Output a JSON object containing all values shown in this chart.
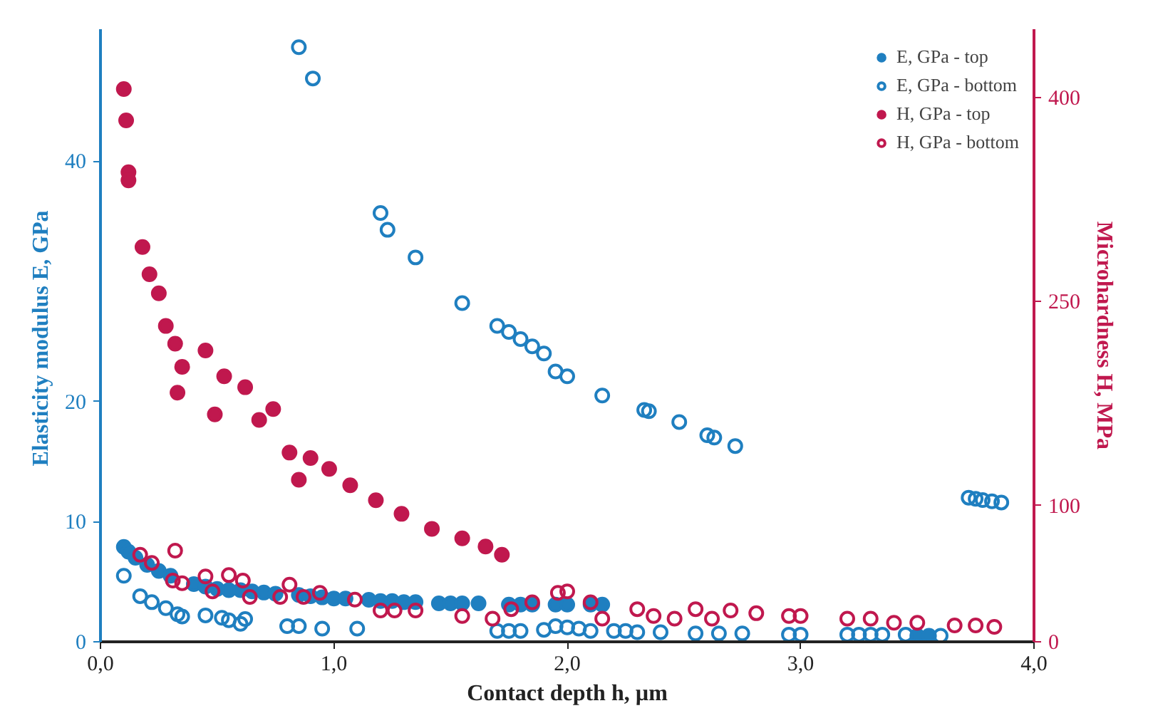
{
  "chart_data": {
    "type": "scatter",
    "xlabel": "Contact depth h, µm",
    "ylabel": "Elasticity modulus  E, GPa",
    "y2label": "Microhardness H, MPa",
    "xlim": [
      0,
      4
    ],
    "xticks": [
      {
        "value": 0,
        "label": "0,0"
      },
      {
        "value": 1,
        "label": "1,0"
      },
      {
        "value": 2,
        "label": "2,0"
      },
      {
        "value": 3,
        "label": "3,0"
      },
      {
        "value": 4,
        "label": "4,0"
      }
    ],
    "ylim": [
      0,
      51
    ],
    "yticks": [
      0,
      10,
      20,
      40
    ],
    "y2lim": [
      0,
      450
    ],
    "y2ticks": [
      0,
      100,
      250,
      400
    ],
    "grid": false,
    "legend": "top right",
    "series": [
      {
        "name": "E, GPa - top",
        "color": "#1f7fc0",
        "marker": "circle",
        "x": [
          0.1,
          0.12,
          0.15,
          0.2,
          0.25,
          0.3,
          0.4,
          0.45,
          0.5,
          0.55,
          0.6,
          0.65,
          0.7,
          0.75,
          0.85,
          0.9,
          0.95,
          1.0,
          1.05,
          1.15,
          1.2,
          1.25,
          1.3,
          1.35,
          1.45,
          1.5,
          1.55,
          1.62,
          1.75,
          1.8,
          1.85,
          1.95,
          2.0,
          2.1,
          2.15,
          3.5,
          3.55
        ],
        "values": [
          7.9,
          7.5,
          7.0,
          6.4,
          5.9,
          5.5,
          4.8,
          4.6,
          4.4,
          4.3,
          4.3,
          4.2,
          4.1,
          4.0,
          3.9,
          3.8,
          3.7,
          3.6,
          3.6,
          3.5,
          3.4,
          3.4,
          3.3,
          3.3,
          3.2,
          3.2,
          3.2,
          3.2,
          3.1,
          3.1,
          3.1,
          3.1,
          3.1,
          3.1,
          3.1,
          0.5,
          0.5
        ]
      },
      {
        "name": "E, GPa - bottom",
        "color": "#1f7fc0",
        "marker": "circle_open",
        "x": [
          0.1,
          0.17,
          0.22,
          0.28,
          0.33,
          0.35,
          0.45,
          0.52,
          0.55,
          0.6,
          0.62,
          0.8,
          0.85,
          0.95,
          1.1,
          1.7,
          1.75,
          1.8,
          1.9,
          1.95,
          2.0,
          2.05,
          2.1,
          2.2,
          2.25,
          2.3,
          2.4,
          2.55,
          2.65,
          2.75,
          2.95,
          3.0,
          3.2,
          3.25,
          3.3,
          3.35,
          3.45,
          3.6,
          0.85,
          0.91,
          1.2,
          1.23,
          1.35,
          1.55,
          1.7,
          1.75,
          1.8,
          1.85,
          1.9,
          1.95,
          2.0,
          2.15,
          2.33,
          2.35,
          2.48,
          2.6,
          2.63,
          2.72,
          3.72,
          3.75,
          3.78,
          3.82,
          3.86
        ],
        "values": [
          5.5,
          3.8,
          3.3,
          2.8,
          2.3,
          2.1,
          2.2,
          2.0,
          1.8,
          1.5,
          1.9,
          1.3,
          1.3,
          1.1,
          1.1,
          0.9,
          0.9,
          0.9,
          1.0,
          1.3,
          1.2,
          1.1,
          0.9,
          0.9,
          0.9,
          0.8,
          0.8,
          0.7,
          0.7,
          0.7,
          0.6,
          0.6,
          0.6,
          0.6,
          0.6,
          0.6,
          0.6,
          0.5,
          49.5,
          46.9,
          35.7,
          34.3,
          32.0,
          28.2,
          26.3,
          25.8,
          25.2,
          24.6,
          24.0,
          22.5,
          22.1,
          20.5,
          19.3,
          19.2,
          18.3,
          17.2,
          17.0,
          16.3,
          12.0,
          11.9,
          11.8,
          11.7,
          11.6
        ]
      },
      {
        "name": "H, GPa - top",
        "color": "#c0184e",
        "marker": "circle",
        "axis": "y2",
        "x": [
          0.1,
          0.11,
          0.12,
          0.12,
          0.18,
          0.21,
          0.25,
          0.28,
          0.32,
          0.33,
          0.35,
          0.45,
          0.49,
          0.53,
          0.62,
          0.68,
          0.74,
          0.81,
          0.85,
          0.9,
          0.98,
          1.07,
          1.18,
          1.29,
          1.42,
          1.55,
          1.65,
          1.72
        ],
        "values": [
          406,
          383,
          345,
          339,
          290,
          270,
          256,
          232,
          219,
          183,
          202,
          214,
          167,
          195,
          187,
          163,
          171,
          139,
          119,
          135,
          127,
          115,
          104,
          94,
          83,
          76,
          70,
          64
        ]
      },
      {
        "name": "H, GPa - bottom",
        "color": "#c0184e",
        "marker": "circle_open",
        "axis": "y2",
        "x": [
          0.17,
          0.22,
          0.32,
          0.31,
          0.35,
          0.45,
          0.48,
          0.55,
          0.61,
          0.64,
          0.77,
          0.81,
          0.87,
          0.94,
          1.09,
          1.2,
          1.26,
          1.35,
          1.55,
          1.68,
          1.76,
          1.85,
          1.96,
          2.0,
          2.1,
          2.15,
          2.3,
          2.37,
          2.46,
          2.55,
          2.62,
          2.7,
          2.81,
          2.95,
          3.0,
          3.2,
          3.3,
          3.4,
          3.5,
          3.66,
          3.75,
          3.83
        ],
        "values": [
          64,
          58,
          67,
          45,
          43,
          48,
          37,
          49,
          45,
          33,
          33,
          42,
          33,
          36,
          31,
          23,
          23,
          23,
          19,
          17,
          24,
          29,
          36,
          37,
          29,
          17,
          24,
          19,
          17,
          24,
          17,
          23,
          21,
          19,
          19,
          17,
          17,
          14,
          14,
          12,
          12,
          11
        ]
      }
    ]
  }
}
